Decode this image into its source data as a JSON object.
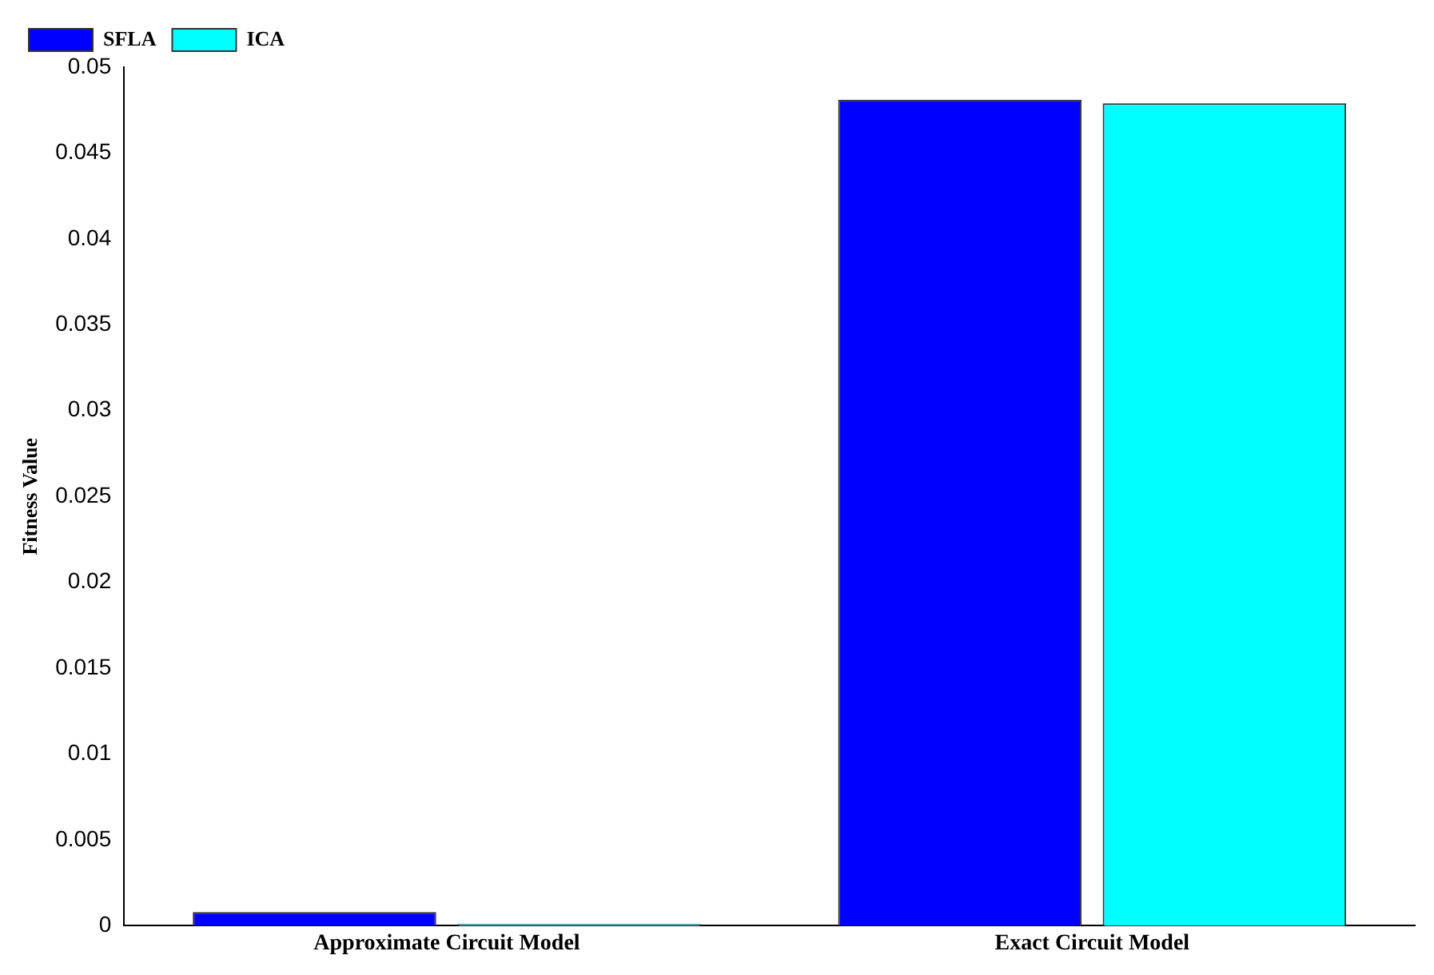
{
  "chart_data": {
    "type": "bar",
    "ylabel": "Fitness Value",
    "categories": [
      "Approximate Circuit Model",
      "Exact Circuit Model"
    ],
    "series": [
      {
        "name": "SFLA",
        "color": "#0000ff",
        "values": [
          0.0008,
          0.0481
        ]
      },
      {
        "name": "ICA",
        "color": "#00ffff",
        "values": [
          0.0001,
          0.0479
        ]
      }
    ],
    "ylim": [
      0,
      0.05
    ],
    "yticks": [
      0,
      0.005,
      0.01,
      0.015,
      0.02,
      0.025,
      0.03,
      0.035,
      0.04,
      0.045,
      0.05
    ],
    "grid": false,
    "legend": "top left"
  }
}
